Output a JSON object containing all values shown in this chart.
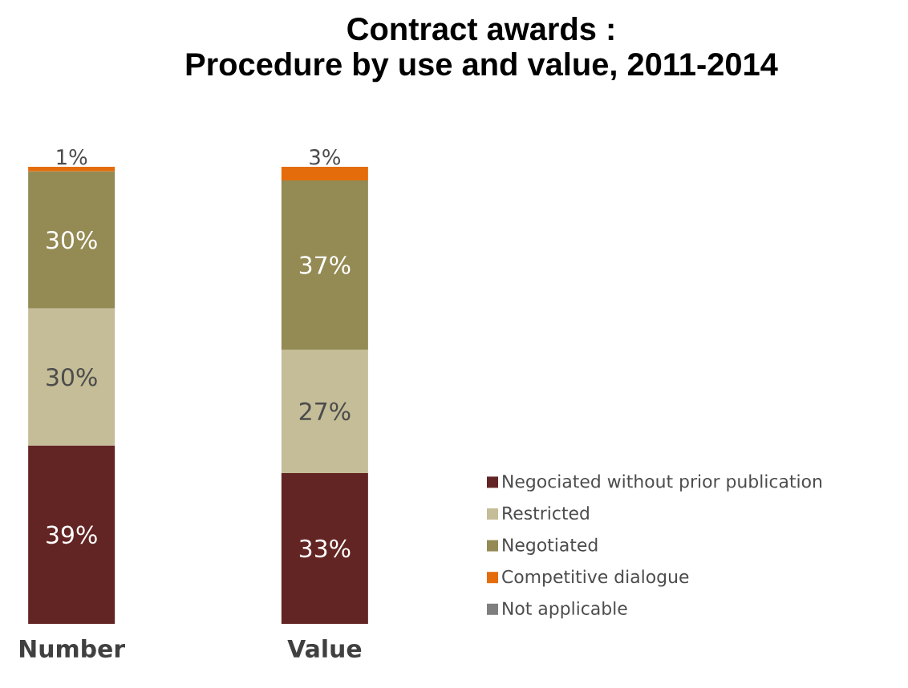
{
  "chart_data": {
    "type": "bar",
    "stacked": true,
    "title": "Contract awards :",
    "subtitle": "Procedure by use and value, 2011-2014",
    "categories": [
      "Number",
      "Value"
    ],
    "series": [
      {
        "name": "Negociated without prior publication",
        "color": "#632523",
        "values": [
          39,
          33
        ],
        "value_labels": [
          "39%",
          "33%"
        ]
      },
      {
        "name": "Restricted",
        "color": "#c4bd97",
        "values": [
          30,
          27
        ],
        "value_labels": [
          "30%",
          "27%"
        ]
      },
      {
        "name": "Negotiated",
        "color": "#948a54",
        "values": [
          30,
          37
        ],
        "value_labels": [
          "30%",
          "37%"
        ]
      },
      {
        "name": "Competitive dialogue",
        "color": "#e46c0a",
        "values": [
          1,
          3
        ],
        "value_labels": [
          "1%",
          "3%"
        ]
      },
      {
        "name": "Not applicable",
        "color": "#7f7f7f",
        "values": [
          0,
          0
        ],
        "value_labels": [
          null,
          null
        ]
      }
    ],
    "legend": "bottom right"
  }
}
